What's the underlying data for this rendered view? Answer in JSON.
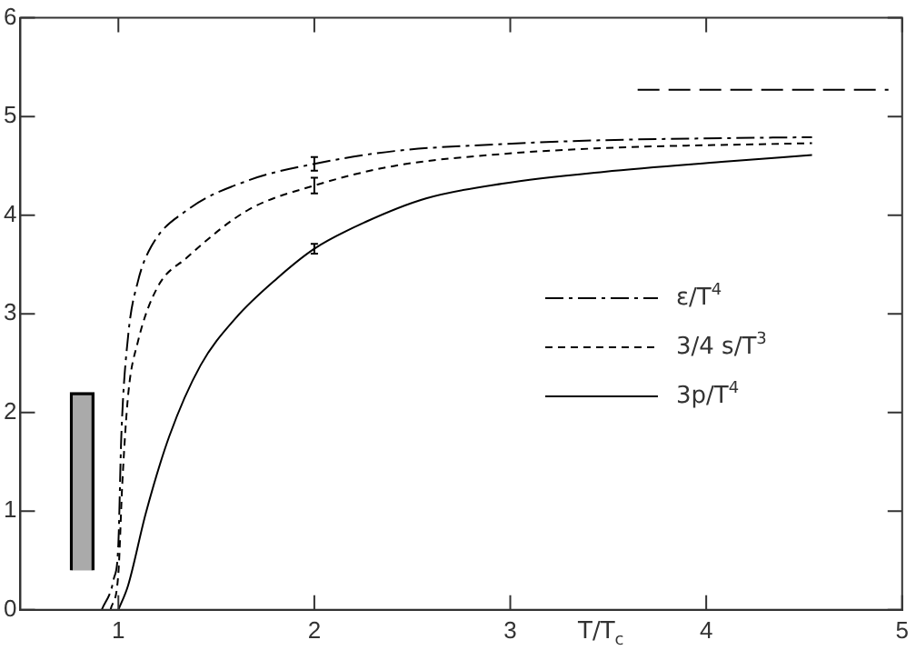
{
  "chart_data": {
    "type": "line",
    "xlabel": "T/T$_{c}$",
    "xlim": [
      0.5,
      5
    ],
    "xticks": [
      1,
      2,
      3,
      4,
      5
    ],
    "ylim": [
      0,
      6
    ],
    "yticks": [
      0,
      1,
      2,
      3,
      4,
      5,
      6
    ],
    "grid": false,
    "legend": "right",
    "marker": "none",
    "series": [
      {
        "name": "ε/T$^{4}$",
        "color": "#000000",
        "line_style": "dashdot",
        "x": [
          0.915,
          0.976,
          1.0,
          1.015,
          1.05,
          1.1,
          1.17,
          1.35,
          1.66,
          2.0,
          2.41,
          2.96,
          3.48,
          4.08,
          4.54
        ],
        "values": [
          0,
          0.31,
          0.67,
          1.76,
          2.78,
          3.33,
          3.69,
          4.05,
          4.35,
          4.52,
          4.65,
          4.72,
          4.76,
          4.78,
          4.79
        ],
        "errors": [
          null,
          null,
          null,
          null,
          null,
          null,
          null,
          null,
          null,
          0.07,
          null,
          null,
          null,
          null,
          null
        ]
      },
      {
        "name": "3/4 s/T$^{3}$",
        "color": "#000000",
        "line_style": "dashed",
        "x": [
          0.96,
          1.0,
          1.02,
          1.05,
          1.1,
          1.2,
          1.35,
          1.66,
          2.0,
          2.41,
          2.96,
          3.48,
          4.54
        ],
        "values": [
          0,
          0.37,
          1.28,
          2.18,
          2.72,
          3.27,
          3.57,
          4.05,
          4.3,
          4.5,
          4.62,
          4.68,
          4.73
        ],
        "errors": [
          null,
          null,
          null,
          null,
          null,
          null,
          null,
          null,
          0.08,
          null,
          null,
          null,
          null
        ]
      },
      {
        "name": "3p/T$^{4}$",
        "color": "#000000",
        "line_style": "solid",
        "x": [
          1.0,
          1.05,
          1.14,
          1.26,
          1.42,
          1.6,
          1.81,
          2.0,
          2.26,
          2.57,
          2.96,
          3.48,
          4.08,
          4.54
        ],
        "values": [
          0,
          0.25,
          0.98,
          1.76,
          2.48,
          2.96,
          3.36,
          3.66,
          3.93,
          4.17,
          4.32,
          4.44,
          4.54,
          4.61
        ],
        "errors": [
          null,
          null,
          null,
          null,
          null,
          null,
          null,
          0.05,
          null,
          null,
          null,
          null,
          null,
          null
        ]
      },
      {
        "type": "line",
        "color": "#000000",
        "line_style": "dashed",
        "x": [
          3.65,
          4.93
        ],
        "values": [
          5.27,
          5.27
        ]
      },
      {
        "type": "bar",
        "color": "#000000",
        "x": [
          0.815
        ],
        "base": [
          0.4
        ],
        "values": [
          1.8
        ]
      }
    ]
  }
}
